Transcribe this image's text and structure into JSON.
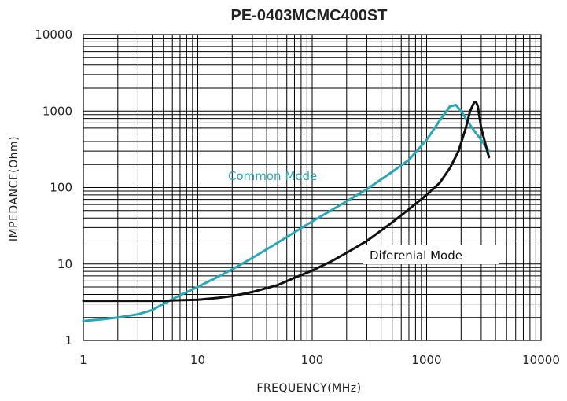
{
  "chart_data": {
    "type": "line",
    "title": "PE-0403MCMC400ST",
    "xlabel": "FREQUENCY(MHz)",
    "ylabel": "IMPEDANCE(Ohm)",
    "x_scale": "log",
    "y_scale": "log",
    "xlim": [
      1,
      10000
    ],
    "ylim": [
      1,
      10000
    ],
    "grid": true,
    "x_ticks": [
      1,
      10,
      100,
      1000,
      10000
    ],
    "y_ticks": [
      1,
      10,
      100,
      1000,
      10000
    ],
    "x_tick_labels": [
      "1",
      "10",
      "100",
      "1000",
      "10000"
    ],
    "y_tick_labels": [
      "1",
      "10",
      "100",
      "1000",
      "10000"
    ],
    "series": [
      {
        "name": "Common Mode",
        "color": "#2aa7b5",
        "x": [
          1,
          1.5,
          2,
          3,
          4,
          5,
          7,
          10,
          15,
          20,
          30,
          50,
          70,
          100,
          200,
          300,
          500,
          700,
          1000,
          1300,
          1600,
          1800,
          2000,
          2500,
          3000,
          3500
        ],
        "y": [
          1.8,
          1.9,
          2.0,
          2.2,
          2.5,
          3.0,
          3.9,
          5.0,
          6.8,
          8.5,
          12,
          19,
          26,
          36,
          66,
          95,
          160,
          230,
          420,
          750,
          1150,
          1200,
          1000,
          600,
          420,
          300
        ]
      },
      {
        "name": "Diferenial Mode",
        "color": "#111111",
        "x": [
          1,
          2,
          3,
          5,
          7,
          10,
          15,
          20,
          30,
          50,
          70,
          100,
          150,
          200,
          300,
          500,
          700,
          1000,
          1300,
          1600,
          1900,
          2200,
          2400,
          2600,
          2700,
          2800,
          3000,
          3300,
          3500
        ],
        "y": [
          3.3,
          3.3,
          3.3,
          3.3,
          3.35,
          3.4,
          3.6,
          3.8,
          4.3,
          5.3,
          6.6,
          8.2,
          11,
          14,
          20,
          35,
          52,
          80,
          115,
          180,
          300,
          600,
          1000,
          1300,
          1320,
          1150,
          600,
          350,
          250
        ]
      }
    ],
    "annotations": [
      "Common Mode",
      "Diferenial Mode"
    ]
  }
}
